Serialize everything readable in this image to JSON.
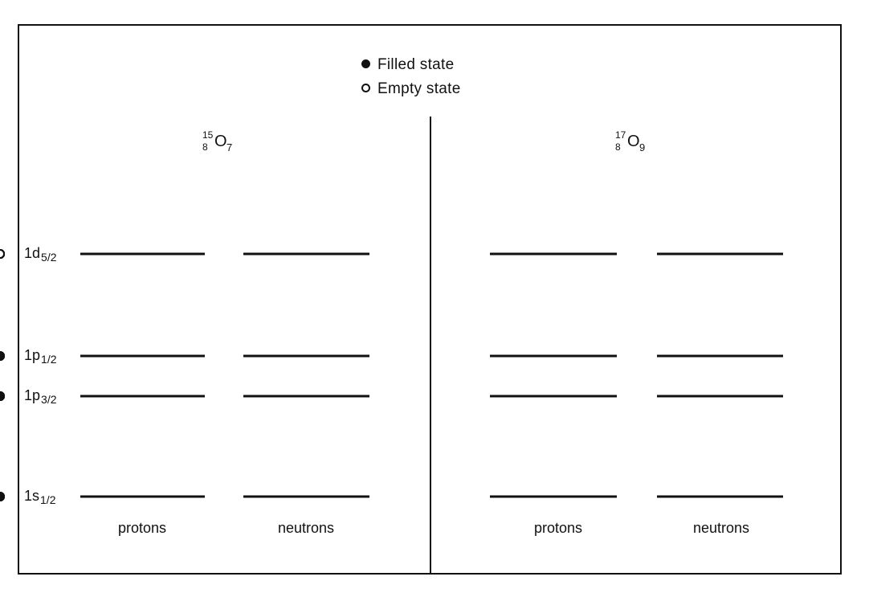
{
  "legend": {
    "filled_label": "Filled state",
    "empty_label": "Empty state"
  },
  "panels": [
    {
      "nuclide": {
        "symbol": "O",
        "mass_number": "15",
        "atomic_number": "8",
        "neutron_number": "7"
      },
      "columns": [
        {
          "label": "protons",
          "levels": {
            "1d5/2": [
              0,
              0,
              0,
              0,
              0,
              0
            ],
            "1p1/2": [
              1,
              1
            ],
            "1p3/2": [
              1,
              1,
              1,
              1
            ],
            "1s1/2": [
              1,
              1
            ]
          }
        },
        {
          "label": "neutrons",
          "levels": {
            "1d5/2": [
              0,
              0,
              0,
              0,
              0,
              0
            ],
            "1p1/2": [
              1,
              0
            ],
            "1p3/2": [
              1,
              1,
              1,
              1
            ],
            "1s1/2": [
              1,
              1
            ]
          }
        }
      ]
    },
    {
      "nuclide": {
        "symbol": "O",
        "mass_number": "17",
        "atomic_number": "8",
        "neutron_number": "9"
      },
      "columns": [
        {
          "label": "protons",
          "levels": {
            "1d5/2": [
              0,
              0,
              0,
              0,
              0,
              0
            ],
            "1p1/2": [
              1,
              1
            ],
            "1p3/2": [
              1,
              1,
              1,
              1
            ],
            "1s1/2": [
              1,
              1
            ]
          }
        },
        {
          "label": "neutrons",
          "levels": {
            "1d5/2": [
              1,
              0,
              0,
              0,
              0,
              0
            ],
            "1p1/2": [
              1,
              1
            ],
            "1p3/2": [
              1,
              1,
              1,
              1
            ],
            "1s1/2": [
              1,
              1
            ]
          }
        }
      ]
    }
  ],
  "levels": [
    {
      "key": "1d5/2",
      "orbital": "1d",
      "j": "5/2"
    },
    {
      "key": "1p1/2",
      "orbital": "1p",
      "j": "1/2"
    },
    {
      "key": "1p3/2",
      "orbital": "1p",
      "j": "3/2"
    },
    {
      "key": "1s1/2",
      "orbital": "1s",
      "j": "1/2"
    }
  ],
  "colors": {
    "ink": "#111111",
    "background": "#ffffff"
  }
}
